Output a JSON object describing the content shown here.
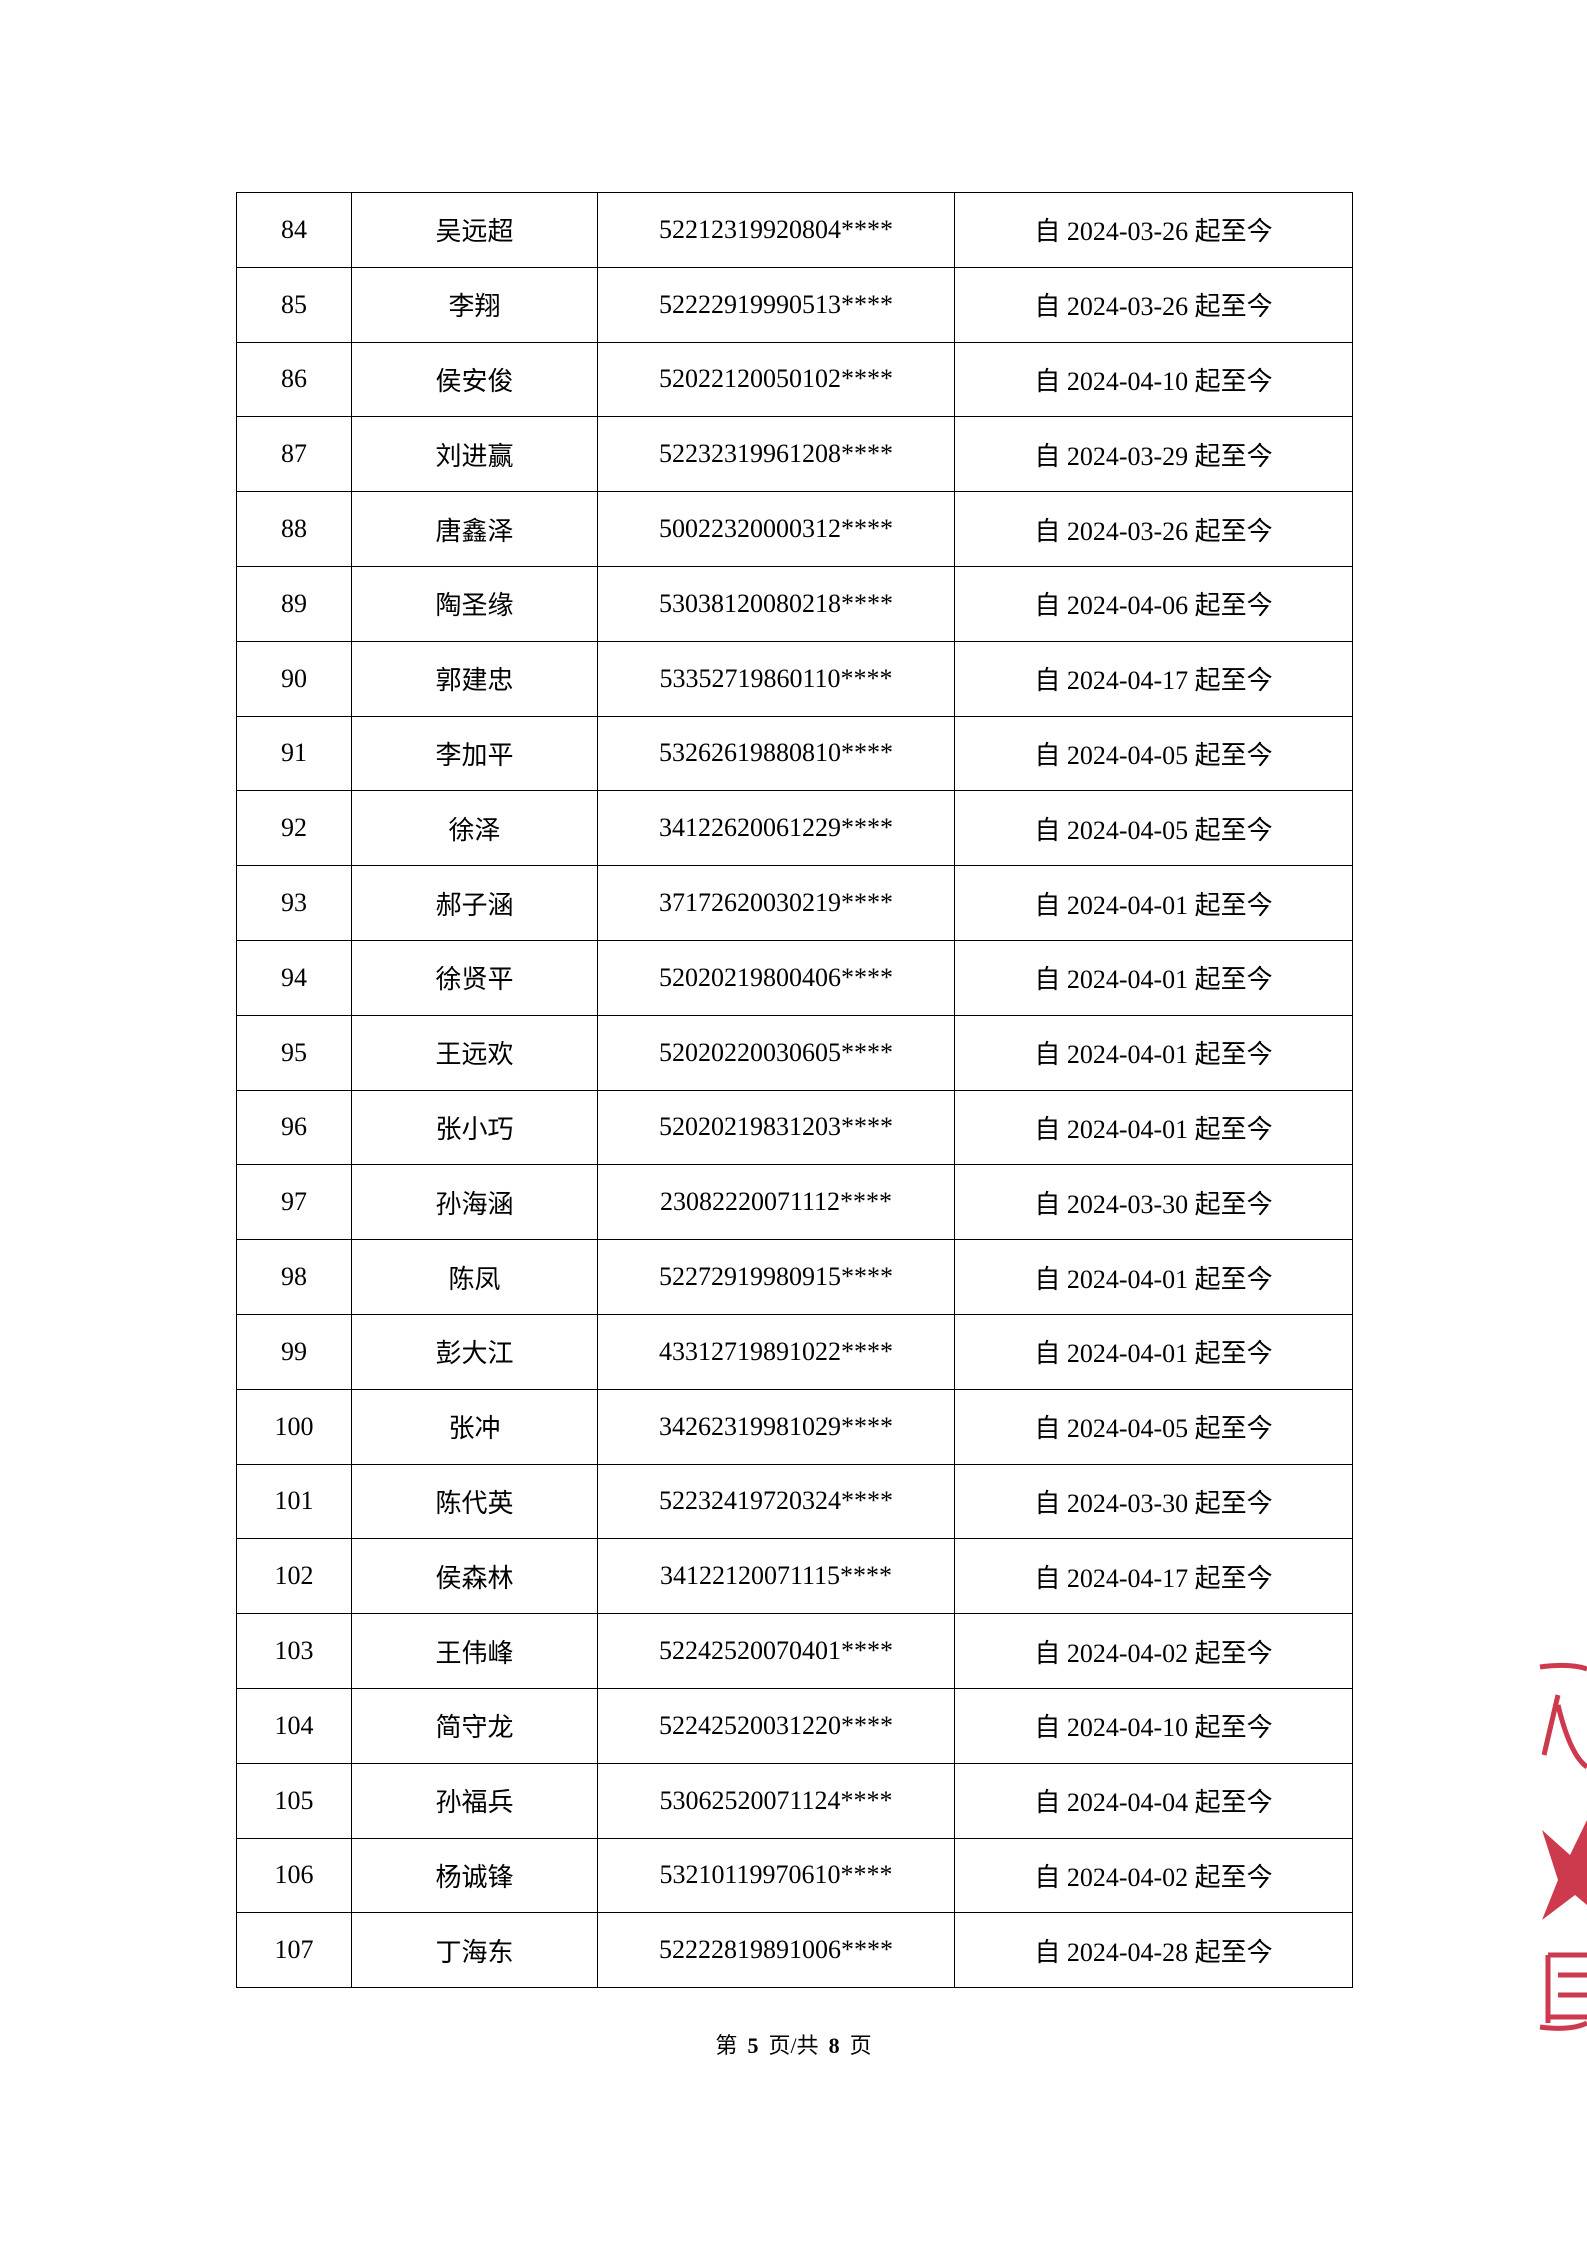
{
  "table": {
    "rows": [
      [
        "84",
        "吴远超",
        "52212319920804****",
        "自 2024-03-26 起至今"
      ],
      [
        "85",
        "李翔",
        "52222919990513****",
        "自 2024-03-26 起至今"
      ],
      [
        "86",
        "侯安俊",
        "52022120050102****",
        "自 2024-04-10 起至今"
      ],
      [
        "87",
        "刘进赢",
        "52232319961208****",
        "自 2024-03-29 起至今"
      ],
      [
        "88",
        "唐鑫泽",
        "50022320000312****",
        "自 2024-03-26 起至今"
      ],
      [
        "89",
        "陶圣缘",
        "53038120080218****",
        "自 2024-04-06 起至今"
      ],
      [
        "90",
        "郭建忠",
        "53352719860110****",
        "自 2024-04-17 起至今"
      ],
      [
        "91",
        "李加平",
        "53262619880810****",
        "自 2024-04-05 起至今"
      ],
      [
        "92",
        "徐泽",
        "34122620061229****",
        "自 2024-04-05 起至今"
      ],
      [
        "93",
        "郝子涵",
        "37172620030219****",
        "自 2024-04-01 起至今"
      ],
      [
        "94",
        "徐贤平",
        "52020219800406****",
        "自 2024-04-01 起至今"
      ],
      [
        "95",
        "王远欢",
        "52020220030605****",
        "自 2024-04-01 起至今"
      ],
      [
        "96",
        "张小巧",
        "52020219831203****",
        "自 2024-04-01 起至今"
      ],
      [
        "97",
        "孙海涵",
        "23082220071112****",
        "自 2024-03-30 起至今"
      ],
      [
        "98",
        "陈凤",
        "52272919980915****",
        "自 2024-04-01 起至今"
      ],
      [
        "99",
        "彭大江",
        "43312719891022****",
        "自 2024-04-01 起至今"
      ],
      [
        "100",
        "张冲",
        "34262319981029****",
        "自 2024-04-05 起至今"
      ],
      [
        "101",
        "陈代英",
        "52232419720324****",
        "自 2024-03-30 起至今"
      ],
      [
        "102",
        "侯森林",
        "34122120071115****",
        "自 2024-04-17 起至今"
      ],
      [
        "103",
        "王伟峰",
        "52242520070401****",
        "自 2024-04-02 起至今"
      ],
      [
        "104",
        "简守龙",
        "52242520031220****",
        "自 2024-04-10 起至今"
      ],
      [
        "105",
        "孙福兵",
        "53062520071124****",
        "自 2024-04-04 起至今"
      ],
      [
        "106",
        "杨诚锋",
        "53210119970610****",
        "自 2024-04-02 起至今"
      ],
      [
        "107",
        "丁海东",
        "52222819891006****",
        "自 2024-04-28 起至今"
      ]
    ]
  },
  "footer": {
    "prefix": "第",
    "page": "5",
    "middle": "页/共",
    "total": "8",
    "suffix": "页"
  },
  "stamp": {
    "color": "#c8243a",
    "visible_chars": "人 ★ 民"
  }
}
